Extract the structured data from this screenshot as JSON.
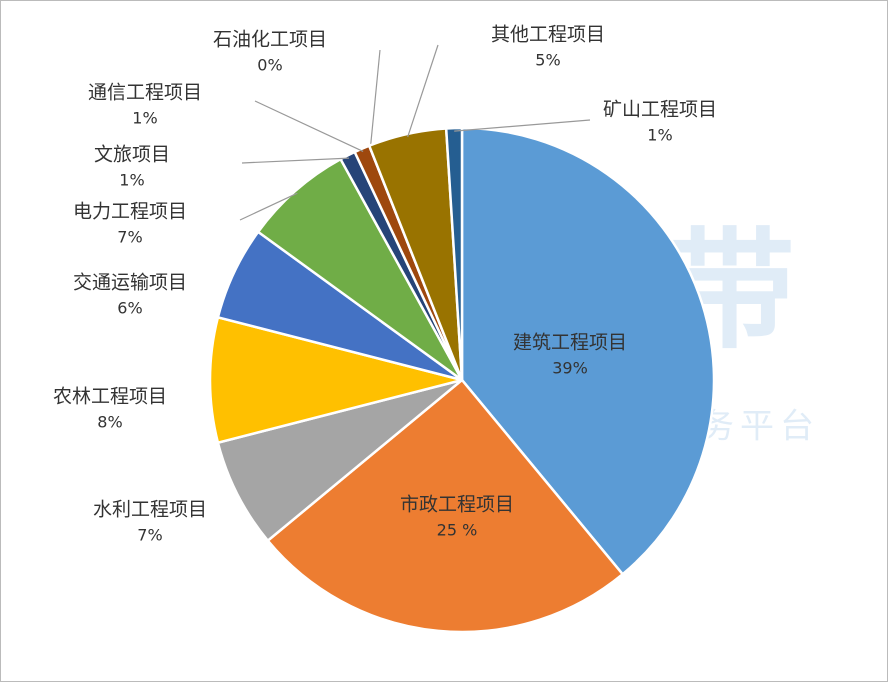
{
  "chart_data": {
    "type": "pie",
    "categories": [
      "建筑工程项目",
      "市政工程项目",
      "水利工程项目",
      "农林工程项目",
      "交通运输项目",
      "电力工程项目",
      "文旅项目",
      "通信工程项目",
      "石油化工项目",
      "其他工程项目",
      "矿山工程项目"
    ],
    "values": [
      39,
      25,
      7,
      8,
      6,
      7,
      1,
      1,
      0,
      5,
      1
    ],
    "value_labels": [
      "39%",
      "25 %",
      "7%",
      "8%",
      "6%",
      "7%",
      "1%",
      "1%",
      "0%",
      "5%",
      "1%"
    ],
    "colors": [
      "#5b9bd5",
      "#ed7d31",
      "#a5a5a5",
      "#ffc000",
      "#4472c4",
      "#70ad47",
      "#264478",
      "#9e480e",
      "#636363",
      "#997300",
      "#255e91"
    ],
    "watermark": {
      "title": "小海带",
      "subtitle": "工程咨询数字化服务平台"
    }
  }
}
